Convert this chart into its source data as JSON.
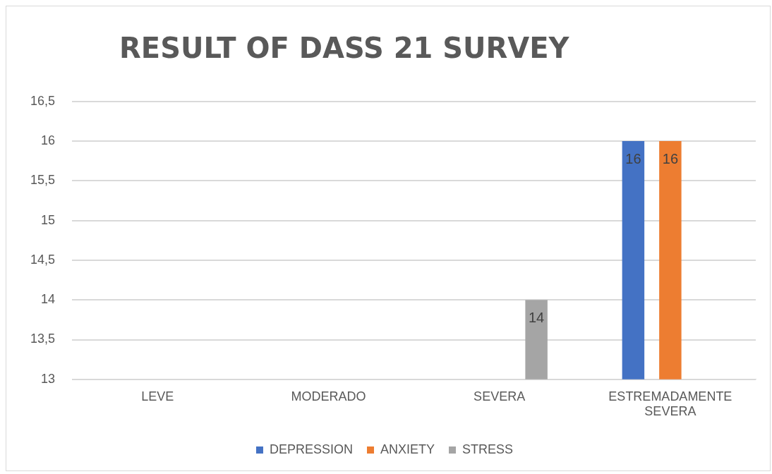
{
  "chart_data": {
    "type": "bar",
    "title": "RESULT OF DASS 21 SURVEY",
    "categories": [
      "LEVE",
      "MODERADO",
      "SEVERA",
      "ESTREMADAMENTE SEVERA"
    ],
    "series": [
      {
        "name": "DEPRESSION",
        "color": "#4472c4",
        "values": [
          null,
          null,
          null,
          16
        ]
      },
      {
        "name": "ANXIETY",
        "color": "#ed7d31",
        "values": [
          null,
          null,
          null,
          16
        ]
      },
      {
        "name": "STRESS",
        "color": "#a5a5a5",
        "values": [
          null,
          null,
          14,
          null
        ]
      }
    ],
    "ylim": [
      13,
      16.5
    ],
    "yticks": [
      {
        "value": 13,
        "label": "13"
      },
      {
        "value": 13.5,
        "label": "13,5"
      },
      {
        "value": 14,
        "label": "14"
      },
      {
        "value": 14.5,
        "label": "14,5"
      },
      {
        "value": 15,
        "label": "15"
      },
      {
        "value": 15.5,
        "label": "15,5"
      },
      {
        "value": 16,
        "label": "16"
      },
      {
        "value": 16.5,
        "label": "16,5"
      }
    ],
    "grid": "y",
    "legend": "bottom",
    "data_labels": true
  }
}
